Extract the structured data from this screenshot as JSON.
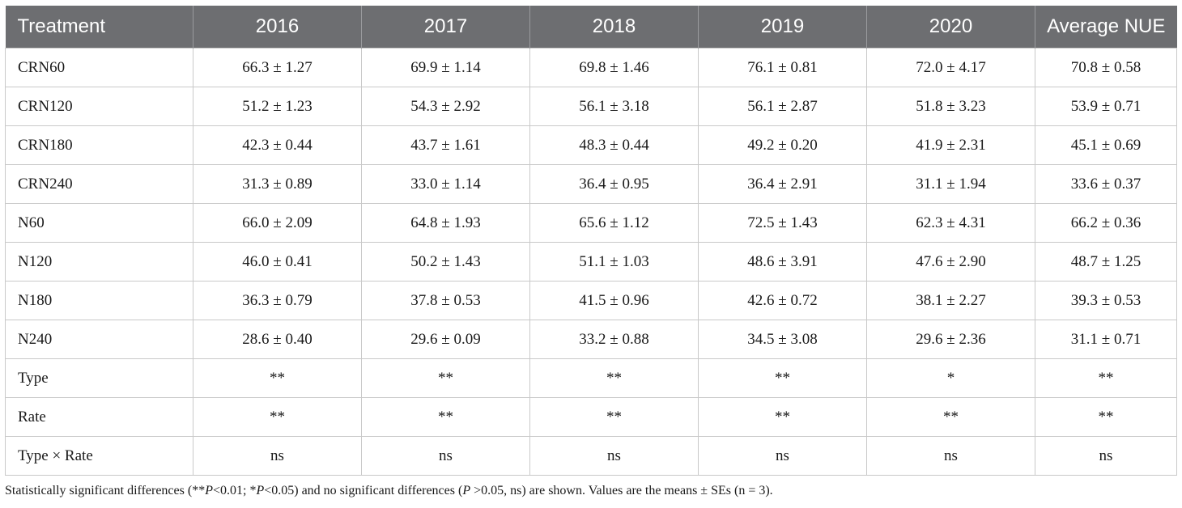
{
  "table": {
    "headers": [
      "Treatment",
      "2016",
      "2017",
      "2018",
      "2019",
      "2020",
      "Average NUE"
    ],
    "rows": [
      [
        "CRN60",
        "66.3 ± 1.27",
        "69.9 ± 1.14",
        "69.8 ± 1.46",
        "76.1 ± 0.81",
        "72.0 ± 4.17",
        "70.8 ± 0.58"
      ],
      [
        "CRN120",
        "51.2 ± 1.23",
        "54.3 ± 2.92",
        "56.1 ± 3.18",
        "56.1 ± 2.87",
        "51.8 ± 3.23",
        "53.9 ± 0.71"
      ],
      [
        "CRN180",
        "42.3 ± 0.44",
        "43.7 ± 1.61",
        "48.3 ± 0.44",
        "49.2 ± 0.20",
        "41.9 ± 2.31",
        "45.1 ± 0.69"
      ],
      [
        "CRN240",
        "31.3 ± 0.89",
        "33.0 ± 1.14",
        "36.4 ± 0.95",
        "36.4 ± 2.91",
        "31.1 ± 1.94",
        "33.6 ± 0.37"
      ],
      [
        "N60",
        "66.0 ± 2.09",
        "64.8 ± 1.93",
        "65.6 ± 1.12",
        "72.5 ± 1.43",
        "62.3 ± 4.31",
        "66.2 ± 0.36"
      ],
      [
        "N120",
        "46.0 ± 0.41",
        "50.2 ± 1.43",
        "51.1 ± 1.03",
        "48.6 ± 3.91",
        "47.6 ± 2.90",
        "48.7 ± 1.25"
      ],
      [
        "N180",
        "36.3 ± 0.79",
        "37.8 ± 0.53",
        "41.5 ± 0.96",
        "42.6 ± 0.72",
        "38.1 ± 2.27",
        "39.3 ± 0.53"
      ],
      [
        "N240",
        "28.6 ± 0.40",
        "29.6 ± 0.09",
        "33.2 ± 0.88",
        "34.5 ± 3.08",
        "29.6 ± 2.36",
        "31.1 ± 0.71"
      ],
      [
        "Type",
        "**",
        "**",
        "**",
        "**",
        "*",
        "**"
      ],
      [
        "Rate",
        "**",
        "**",
        "**",
        "**",
        "**",
        "**"
      ],
      [
        "Type × Rate",
        "ns",
        "ns",
        "ns",
        "ns",
        "ns",
        "ns"
      ]
    ]
  },
  "footnote": {
    "t1": "Statistically significant differences (**",
    "p1": "P",
    "t2": "<0.01; *",
    "p2": "P",
    "t3": "<0.05) and no significant differences (",
    "p3": "P",
    "t4": " >0.05, ns) are shown. Values are the means ± SEs (n = 3)."
  },
  "colors": {
    "header_bg": "#6d6e71",
    "header_text": "#ffffff",
    "grid_line": "#c9c9c9"
  }
}
